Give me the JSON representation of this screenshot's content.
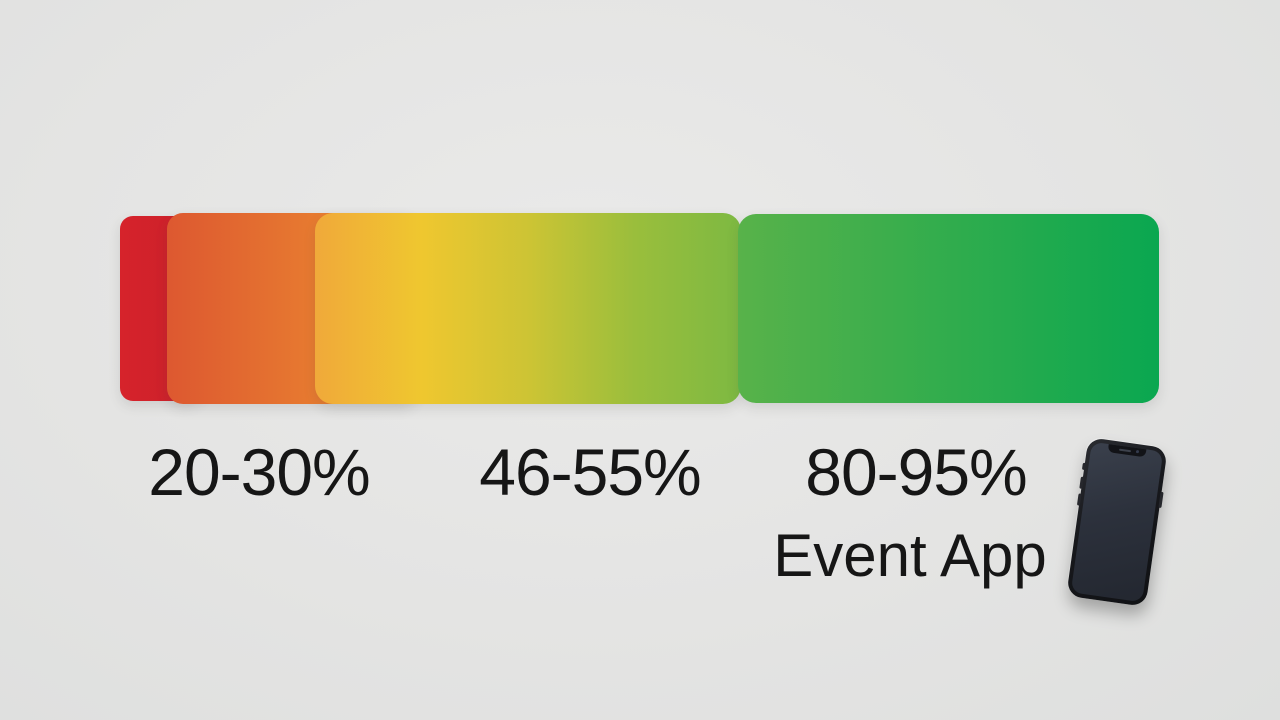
{
  "colors": {
    "background": "#e4e4e3",
    "text": "#161616",
    "phone_body": "#17181c",
    "phone_screen": "#2c313c"
  },
  "chart_data": {
    "type": "bar",
    "variant": "horizontal-gradient-range-scale",
    "title": "",
    "caption": "Event App",
    "orientation": "horizontal",
    "grid": false,
    "legend_position": "none",
    "categories": [
      "20-30%",
      "46-55%",
      "80-95%"
    ],
    "ranges": [
      [
        20,
        30
      ],
      [
        46,
        55
      ],
      [
        80,
        95
      ]
    ],
    "unit": "%",
    "scale_colors_low_to_high": [
      "#ce2129",
      "#df5a2f",
      "#ee9431",
      "#f0a93a",
      "#eec72f",
      "#cdc434",
      "#9abe3c",
      "#7db942",
      "#5bb34a",
      "#0aa750"
    ],
    "segments": [
      {
        "name": "red",
        "gradient": [
          "#d6232b",
          "#c9202a"
        ]
      },
      {
        "name": "orange",
        "gradient": [
          "#dd5830",
          "#ee9230"
        ]
      },
      {
        "name": "yellow-to-green",
        "gradient": [
          "#f0a93a",
          "#efc72f",
          "#cdc434",
          "#9abe3c",
          "#7db942"
        ]
      },
      {
        "name": "green",
        "gradient": [
          "#58b24a",
          "#0aa750"
        ]
      }
    ]
  }
}
